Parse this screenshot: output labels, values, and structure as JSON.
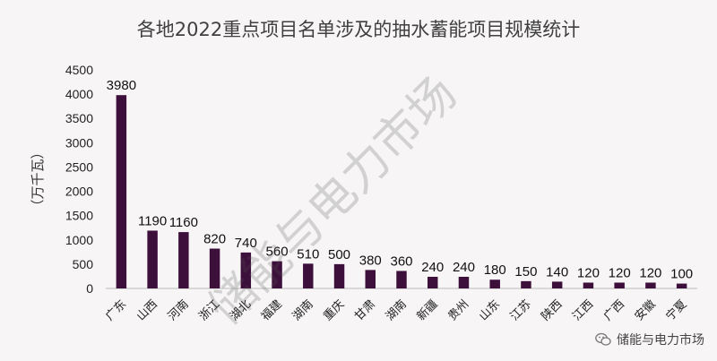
{
  "chart_data": {
    "type": "bar",
    "title": "各地2022重点项目名单涉及的抽水蓄能项目规模统计",
    "ylabel": "（万千瓦）",
    "xlabel": "",
    "ylim": [
      0,
      4500
    ],
    "yticks": [
      0,
      500,
      1000,
      1500,
      2000,
      2500,
      3000,
      3500,
      4000,
      4500
    ],
    "grid": false,
    "legend": "none",
    "bar_color": "#3d0f3b",
    "categories": [
      "广东",
      "山西",
      "河南",
      "浙江",
      "湖北",
      "福建",
      "湖南",
      "重庆",
      "甘肃",
      "湖南",
      "新疆",
      "贵州",
      "山东",
      "江苏",
      "陕西",
      "江西",
      "广西",
      "安徽",
      "宁夏"
    ],
    "values": [
      3980,
      1190,
      1160,
      820,
      740,
      560,
      510,
      500,
      380,
      360,
      240,
      240,
      180,
      150,
      140,
      120,
      120,
      120,
      100
    ],
    "value_labels": [
      "3980",
      "1190",
      "1160",
      "820",
      "740",
      "560",
      "510",
      "500",
      "380",
      "360",
      "240",
      "240",
      "180",
      "150",
      "140",
      "120",
      "120",
      "120",
      "100"
    ]
  },
  "watermark": {
    "text": "储能与电力市场",
    "icon": "wechat-icon",
    "brand_label": "储能与电力市场"
  }
}
